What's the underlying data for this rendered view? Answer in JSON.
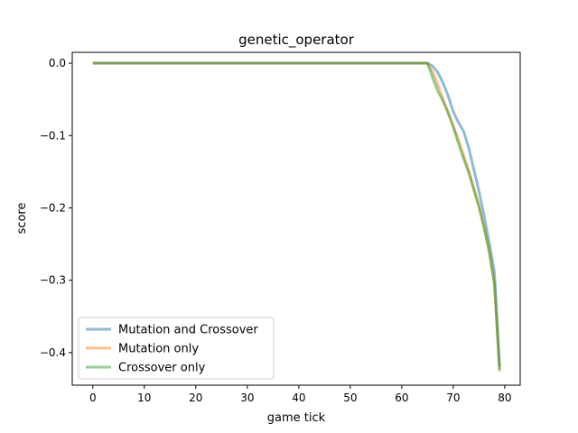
{
  "chart_data": {
    "type": "line",
    "title": "genetic_operator",
    "xlabel": "game tick",
    "ylabel": "score",
    "xlim": [
      -4,
      83
    ],
    "ylim": [
      -0.445,
      0.015
    ],
    "xticks": [
      0,
      10,
      20,
      30,
      40,
      50,
      60,
      70,
      80
    ],
    "yticks": [
      0.0,
      -0.1,
      -0.2,
      -0.3,
      -0.4
    ],
    "ytick_labels": [
      "0.0",
      "−0.1",
      "−0.2",
      "−0.3",
      "−0.4"
    ],
    "grid": false,
    "legend": "lower-left",
    "series": [
      {
        "name": "Mutation and Crossover",
        "color": "#1f77b4",
        "points": [
          [
            0,
            0
          ],
          [
            65,
            0
          ],
          [
            66,
            -0.004
          ],
          [
            67,
            -0.013
          ],
          [
            68,
            -0.027
          ],
          [
            69,
            -0.045
          ],
          [
            70,
            -0.067
          ],
          [
            71,
            -0.082
          ],
          [
            72,
            -0.094
          ],
          [
            73,
            -0.117
          ],
          [
            74,
            -0.147
          ],
          [
            75,
            -0.177
          ],
          [
            76,
            -0.211
          ],
          [
            77,
            -0.249
          ],
          [
            78,
            -0.289
          ],
          [
            79,
            -0.42
          ]
        ]
      },
      {
        "name": "Mutation only",
        "color": "#ff7f0e",
        "points": [
          [
            0,
            0
          ],
          [
            65,
            0
          ],
          [
            66,
            -0.012
          ],
          [
            67,
            -0.03
          ],
          [
            68,
            -0.05
          ],
          [
            69,
            -0.069
          ],
          [
            70,
            -0.087
          ],
          [
            71,
            -0.106
          ],
          [
            72,
            -0.127
          ],
          [
            73,
            -0.149
          ],
          [
            74,
            -0.173
          ],
          [
            75,
            -0.197
          ],
          [
            76,
            -0.227
          ],
          [
            77,
            -0.262
          ],
          [
            78,
            -0.305
          ],
          [
            79,
            -0.426
          ]
        ]
      },
      {
        "name": "Crossover only",
        "color": "#2ca02c",
        "points": [
          [
            0,
            0
          ],
          [
            65,
            0
          ],
          [
            66,
            -0.02
          ],
          [
            67,
            -0.039
          ],
          [
            68,
            -0.052
          ],
          [
            69,
            -0.068
          ],
          [
            70,
            -0.088
          ],
          [
            71,
            -0.111
          ],
          [
            72,
            -0.132
          ],
          [
            73,
            -0.151
          ],
          [
            74,
            -0.175
          ],
          [
            75,
            -0.199
          ],
          [
            76,
            -0.228
          ],
          [
            77,
            -0.26
          ],
          [
            78,
            -0.305
          ],
          [
            79,
            -0.424
          ]
        ]
      }
    ]
  }
}
